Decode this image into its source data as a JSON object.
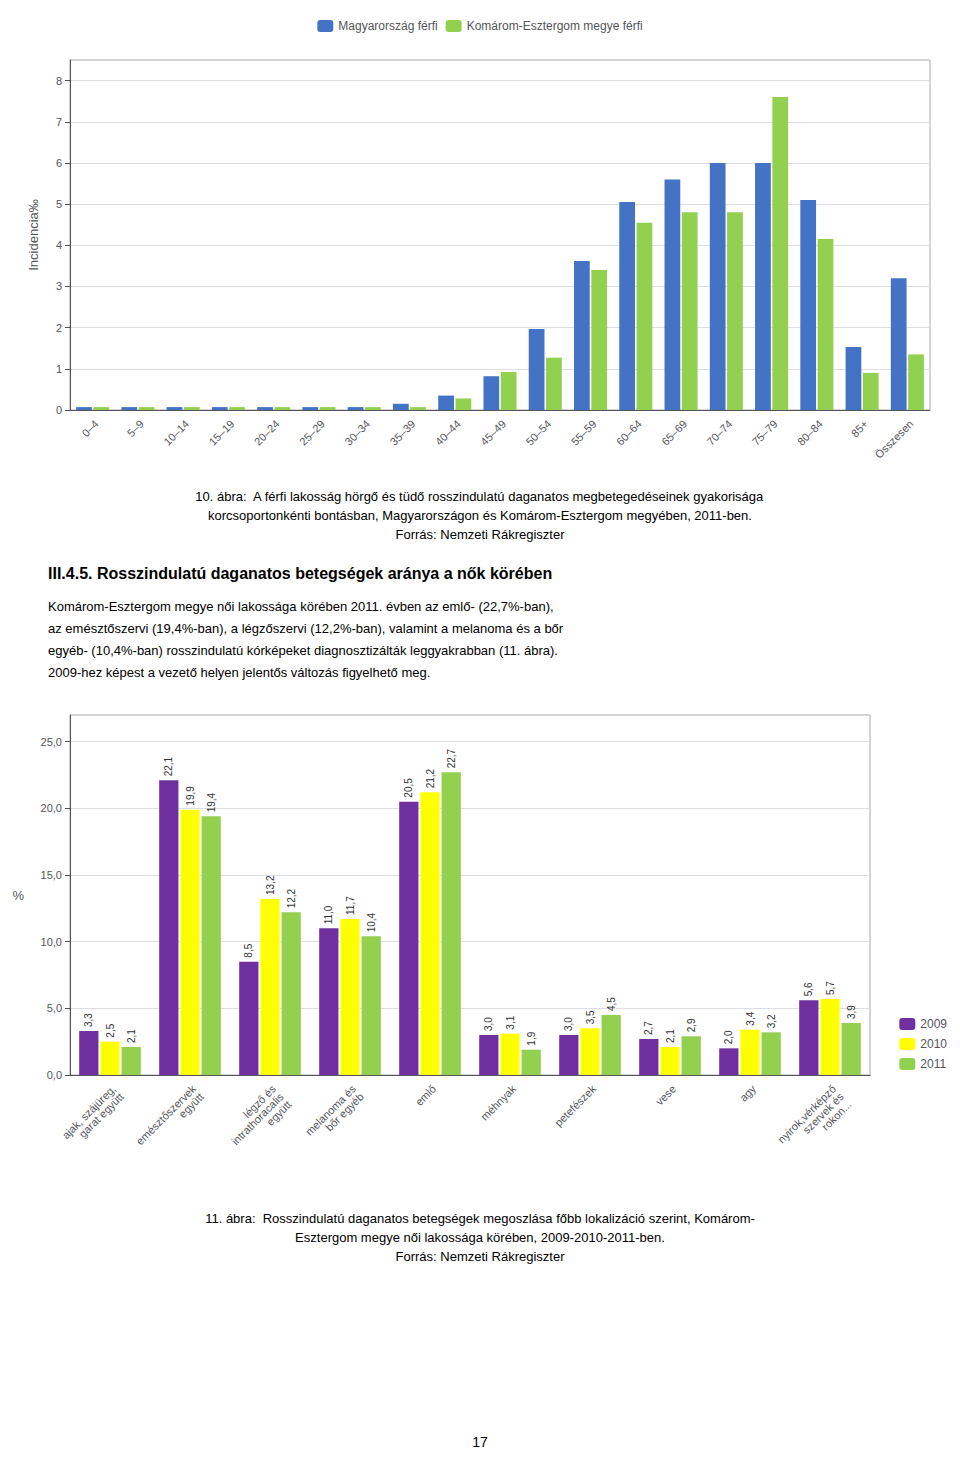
{
  "chart_data": [
    {
      "type": "bar",
      "categories": [
        "0–4",
        "5–9",
        "10–14",
        "15–19",
        "20–24",
        "25–29",
        "30–34",
        "35–39",
        "40–44",
        "45–49",
        "50–54",
        "55–59",
        "60–64",
        "65–69",
        "70–74",
        "75–79",
        "80–84",
        "85+",
        "Összesen"
      ],
      "series": [
        {
          "name": "Magyarország férfi",
          "color": "#4472C4",
          "values": [
            0.07,
            0.07,
            0.07,
            0.07,
            0.07,
            0.07,
            0.07,
            0.15,
            0.35,
            0.82,
            1.97,
            3.62,
            5.05,
            5.6,
            6.0,
            6.0,
            5.1,
            1.53,
            3.2
          ]
        },
        {
          "name": "Komárom-Esztergom megye férfi",
          "color": "#92D050",
          "values": [
            0.07,
            0.07,
            0.07,
            0.07,
            0.07,
            0.07,
            0.07,
            0.07,
            0.28,
            0.92,
            1.27,
            3.4,
            4.55,
            4.8,
            4.8,
            7.6,
            4.15,
            0.9,
            1.35
          ]
        }
      ],
      "ylabel": "Incidencia‰",
      "ylim": [
        0,
        8.5
      ],
      "yticks": [
        0,
        1,
        2,
        3,
        4,
        5,
        6,
        7,
        8
      ],
      "grid": true,
      "legend": "upper center",
      "annotations": [
        "10. ábra:  A férfi lakosság hörgő és tüdő rosszindulatú daganatos megbetegedéseinek gyakorisága",
        "korcsoportonkénti bontásban, Magyarországon és Komárom-Esztergom megyében, 2011-ben.",
        "Forrás: Nemzeti Rákregiszter"
      ]
    },
    {
      "type": "bar",
      "categories": [
        "ajak, szájüreg,\ngarat együtt",
        "emésztőszervek\negyütt",
        "légző és\nintrathoracalis\negyütt",
        "melanoma és\nbőr egyéb",
        "emlő",
        "méhnyak",
        "petefészek",
        "vese",
        "agy",
        "nyirok,vérképző\nszervek és\nrokon..."
      ],
      "series": [
        {
          "name": "2009",
          "color": "#7030A0",
          "values": [
            3.3,
            22.1,
            8.5,
            11.0,
            20.5,
            3.0,
            3.0,
            2.7,
            2.0,
            5.6
          ],
          "value_labels": [
            "3,3",
            "22,1",
            "8,5",
            "11,0",
            "20,5",
            "3,0",
            "3,0",
            "2,7",
            "2,0",
            "5,6"
          ]
        },
        {
          "name": "2010",
          "color": "#FFFF00",
          "values": [
            2.5,
            19.9,
            13.2,
            11.7,
            21.2,
            3.1,
            3.5,
            2.1,
            3.4,
            5.7
          ],
          "value_labels": [
            "2,5",
            "19,9",
            "13,2",
            "11,7",
            "21,2",
            "3,1",
            "3,5",
            "2,1",
            "3,4",
            "5,7"
          ]
        },
        {
          "name": "2011",
          "color": "#92D050",
          "values": [
            2.1,
            19.4,
            12.2,
            10.4,
            22.7,
            1.9,
            4.5,
            2.9,
            3.2,
            3.9
          ],
          "value_labels": [
            "2,1",
            "19,4",
            "12,2",
            "10,4",
            "22,7",
            "1,9",
            "4,5",
            "2,9",
            "3,2",
            "3,9"
          ]
        }
      ],
      "ylabel": "%",
      "ylim": [
        0,
        27.0
      ],
      "yticks": [
        {
          "value": 0.0,
          "label": "0,0"
        },
        {
          "value": 5.0,
          "label": "5,0"
        },
        {
          "value": 10.0,
          "label": "10,0"
        },
        {
          "value": 15.0,
          "label": "15,0"
        },
        {
          "value": 20.0,
          "label": "20,0"
        },
        {
          "value": 25.0,
          "label": "25,0"
        }
      ],
      "grid": true,
      "legend": "lower right",
      "data_labels": true,
      "annotations": [
        "III.4.5. Rosszindulatú daganatos betegségek aránya a nők körében",
        "Komárom-Esztergom megye női lakossága körében 2011. évben az emlő- (22,7%-ban),",
        "az emésztőszervi (19,4%-ban), a légzőszervi (12,2%-ban), valamint a melanoma és a bőr",
        "egyéb- (10,4%-ban) rosszindulatú kórképeket diagnosztizálták leggyakrabban (11. ábra).",
        "2009-hez képest a vezető helyen jelentős változás figyelhető meg.",
        "11. ábra:  Rosszindulatú daganatos betegségek megoszlása főbb lokalizáció szerint, Komárom-",
        "Esztergom megye női lakossága körében, 2009-2010-2011-ben.",
        "Forrás: Nemzeti Rákregiszter",
        "17"
      ]
    }
  ]
}
